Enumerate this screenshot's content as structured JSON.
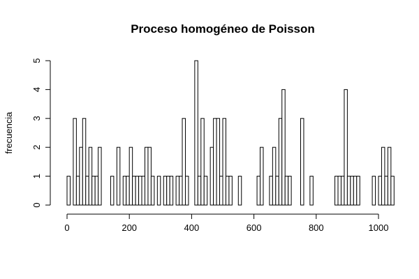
{
  "chart_data": {
    "type": "bar",
    "title": "Proceso homogéneo de Poisson",
    "xlabel": "",
    "ylabel": "frecuencia",
    "xlim": [
      0,
      1000
    ],
    "ylim": [
      0,
      5
    ],
    "xticks": [
      0,
      200,
      400,
      600,
      800,
      1000
    ],
    "yticks": [
      0,
      1,
      2,
      3,
      4,
      5
    ],
    "bin_width": 10,
    "bin_start": 0,
    "values": [
      1,
      0,
      3,
      1,
      2,
      3,
      1,
      2,
      1,
      1,
      2,
      0,
      0,
      0,
      1,
      0,
      2,
      0,
      1,
      1,
      2,
      1,
      1,
      1,
      1,
      2,
      2,
      1,
      0,
      1,
      0,
      1,
      1,
      1,
      0,
      1,
      1,
      3,
      1,
      0,
      0,
      5,
      1,
      3,
      1,
      0,
      2,
      3,
      3,
      1,
      3,
      1,
      1,
      0,
      0,
      1,
      0,
      0,
      0,
      0,
      0,
      1,
      2,
      0,
      0,
      1,
      2,
      1,
      3,
      4,
      1,
      1,
      0,
      0,
      0,
      3,
      0,
      0,
      1,
      0,
      0,
      0,
      0,
      0,
      0,
      0,
      1,
      1,
      1,
      4,
      1,
      1,
      1,
      1,
      0,
      0,
      0,
      0,
      1,
      0,
      1,
      2,
      1,
      2,
      1
    ]
  }
}
